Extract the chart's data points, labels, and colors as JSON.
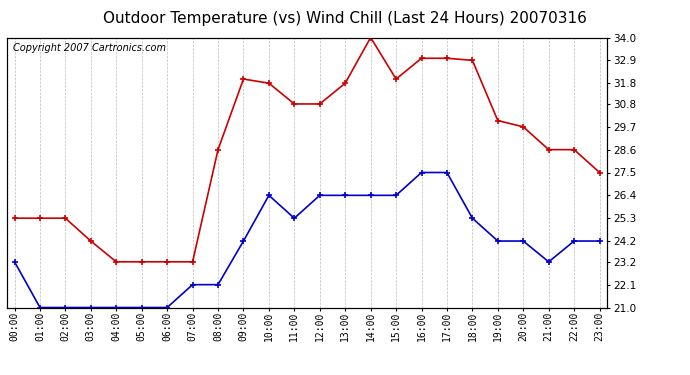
{
  "title": "Outdoor Temperature (vs) Wind Chill (Last 24 Hours) 20070316",
  "copyright": "Copyright 2007 Cartronics.com",
  "hours": [
    "00:00",
    "01:00",
    "02:00",
    "03:00",
    "04:00",
    "05:00",
    "06:00",
    "07:00",
    "08:00",
    "09:00",
    "10:00",
    "11:00",
    "12:00",
    "13:00",
    "14:00",
    "15:00",
    "16:00",
    "17:00",
    "18:00",
    "19:00",
    "20:00",
    "21:00",
    "22:00",
    "23:00"
  ],
  "temp": [
    25.3,
    25.3,
    25.3,
    24.2,
    23.2,
    23.2,
    23.2,
    23.2,
    28.6,
    32.0,
    31.8,
    30.8,
    30.8,
    31.8,
    34.0,
    32.0,
    33.0,
    33.0,
    32.9,
    30.0,
    29.7,
    28.6,
    28.6,
    27.5
  ],
  "windchill": [
    23.2,
    21.0,
    21.0,
    21.0,
    21.0,
    21.0,
    21.0,
    22.1,
    22.1,
    24.2,
    26.4,
    25.3,
    26.4,
    26.4,
    26.4,
    26.4,
    27.5,
    27.5,
    25.3,
    24.2,
    24.2,
    23.2,
    24.2,
    24.2
  ],
  "temp_color": "#cc0000",
  "windchill_color": "#0000cc",
  "ylim_min": 21.0,
  "ylim_max": 34.0,
  "yticks": [
    21.0,
    22.1,
    23.2,
    24.2,
    25.3,
    26.4,
    27.5,
    28.6,
    29.7,
    30.8,
    31.8,
    32.9,
    34.0
  ],
  "bg_color": "#ffffff",
  "plot_bg_color": "#ffffff",
  "grid_color": "#bbbbbb",
  "title_fontsize": 11,
  "copyright_fontsize": 7
}
